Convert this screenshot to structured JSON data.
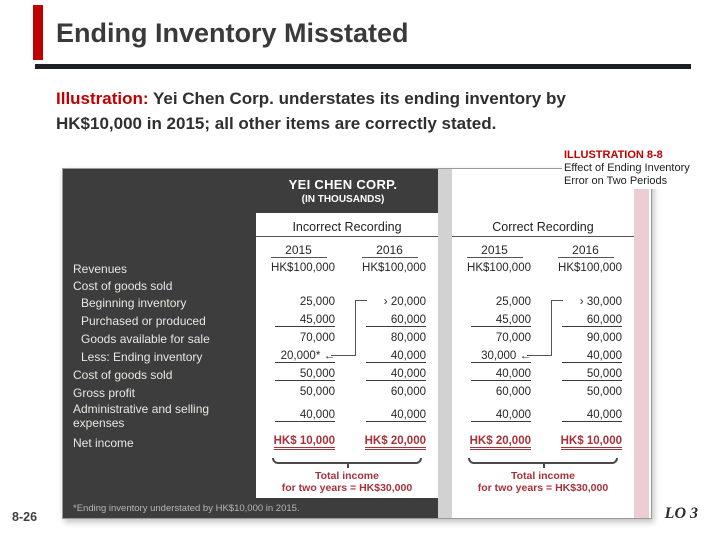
{
  "slide": {
    "title": "Ending Inventory Misstated",
    "page_number": "8-26",
    "lo_label": "LO 3",
    "body": {
      "lead": "Illustration:",
      "text": " Yei Chen Corp. understates its ending inventory by HK$10,000 in 2015; all other items are correctly stated."
    },
    "illustration_caption": {
      "label": "ILLUSTRATION 8-8",
      "text": "Effect of Ending Inventory Error on Two Periods"
    }
  },
  "table": {
    "company": "YEI CHEN CORP.",
    "units": "(IN THOUSANDS)",
    "sections": [
      "Incorrect Recording",
      "Correct Recording"
    ],
    "years": [
      "2015",
      "2016",
      "2015",
      "2016"
    ],
    "rows": [
      {
        "label": "Revenues",
        "values": [
          "HK$100,000",
          "HK$100,000",
          "HK$100,000",
          "HK$100,000"
        ]
      },
      {
        "label": "Cost of goods sold",
        "values": [
          "",
          "",
          "",
          ""
        ]
      },
      {
        "label": "Beginning inventory",
        "indent": true,
        "values": [
          "25,000",
          "› 20,000",
          "25,000",
          "› 30,000"
        ]
      },
      {
        "label": "Purchased or produced",
        "indent": true,
        "underline": true,
        "values": [
          "45,000",
          "60,000",
          "45,000",
          "60,000"
        ]
      },
      {
        "label": "Goods available for sale",
        "indent": true,
        "values": [
          "70,000",
          "80,000",
          "70,000",
          "90,000"
        ]
      },
      {
        "label": "Less: Ending inventory",
        "indent": true,
        "underline": true,
        "values": [
          "20,000* ←",
          "40,000",
          "30,000 ←",
          "40,000"
        ]
      },
      {
        "label": "Cost of goods sold",
        "underline": true,
        "values": [
          "50,000",
          "40,000",
          "40,000",
          "50,000"
        ]
      },
      {
        "label": "Gross profit",
        "values": [
          "50,000",
          "60,000",
          "60,000",
          "50,000"
        ]
      },
      {
        "label": "Administrative and selling expenses",
        "underline": true,
        "values": [
          "40,000",
          "40,000",
          "40,000",
          "40,000"
        ]
      },
      {
        "label": "Net income",
        "net": true,
        "values": [
          "HK$ 10,000",
          "HK$ 20,000",
          "HK$ 20,000",
          "HK$ 10,000"
        ]
      }
    ],
    "totals": {
      "incorrect_line1": "Total income",
      "incorrect_line2": "for two years = HK$30,000",
      "correct_line1": "Total income",
      "correct_line2": "for two years = HK$30,000"
    },
    "footnote": "*Ending inventory understated by HK$10,000 in 2015."
  },
  "colors": {
    "accent_red": "#c00000",
    "value_red": "#a8323a",
    "table_dark": "#3d3d3d",
    "title_gray": "#3a3a3a",
    "divider_gray": "#d2d2d2",
    "edge_pink": "#eccdd1"
  }
}
